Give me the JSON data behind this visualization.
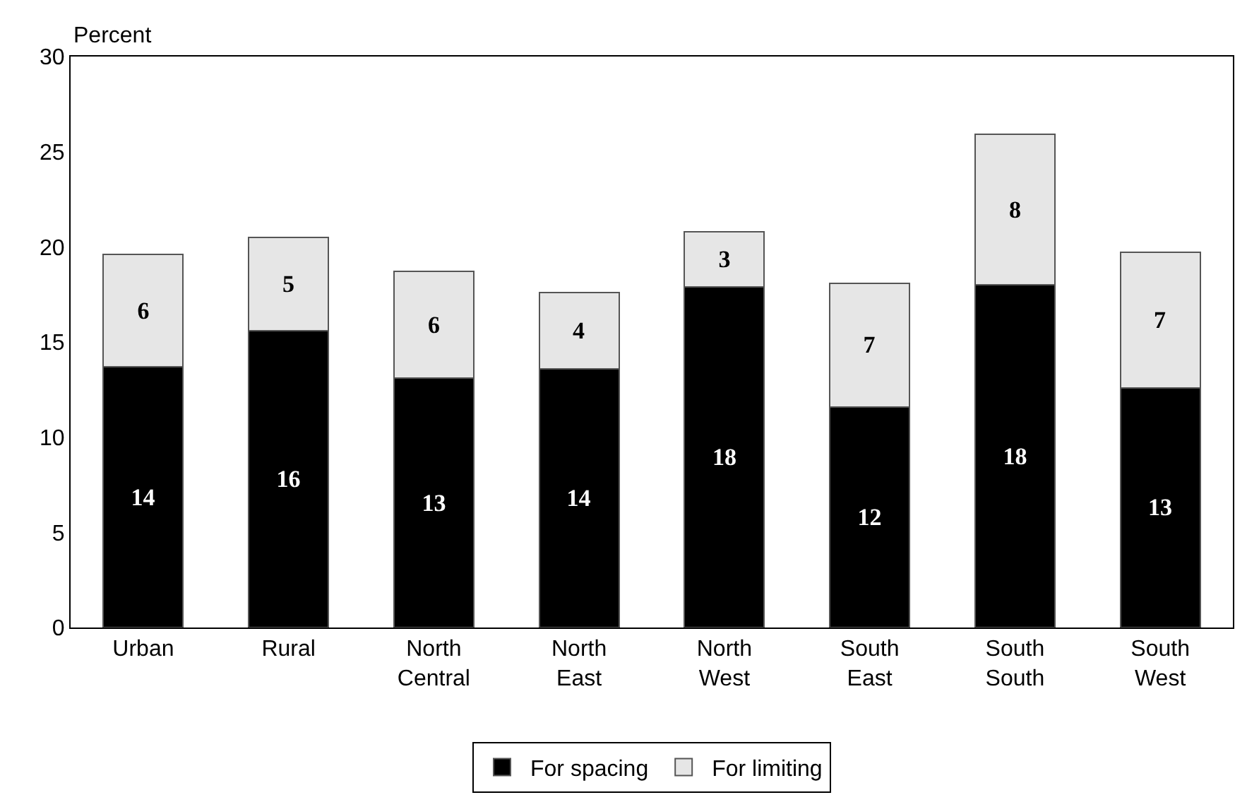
{
  "chart_data": {
    "type": "bar",
    "stacked": true,
    "ylabel": "Percent",
    "categories": [
      "Urban",
      "Rural",
      "North\nCentral",
      "North\nEast",
      "North\nWest",
      "South\nEast",
      "South\nSouth",
      "South\nWest"
    ],
    "series": [
      {
        "name": "For spacing",
        "color": "#000000",
        "values": [
          13.7,
          15.6,
          13.1,
          13.6,
          17.9,
          11.6,
          18.0,
          12.6
        ],
        "value_labels": [
          "14",
          "16",
          "13",
          "14",
          "18",
          "12",
          "18",
          "13"
        ]
      },
      {
        "name": "For limiting",
        "color": "#e6e6e6",
        "values": [
          5.9,
          4.9,
          5.6,
          4.0,
          2.9,
          6.5,
          7.9,
          7.1
        ],
        "value_labels": [
          "6",
          "5",
          "6",
          "4",
          "3",
          "7",
          "8",
          "7"
        ]
      }
    ],
    "ylim": [
      0,
      30
    ],
    "yticks": [
      0,
      5,
      10,
      15,
      20,
      25,
      30
    ],
    "grid": false,
    "legend": "bottom"
  }
}
